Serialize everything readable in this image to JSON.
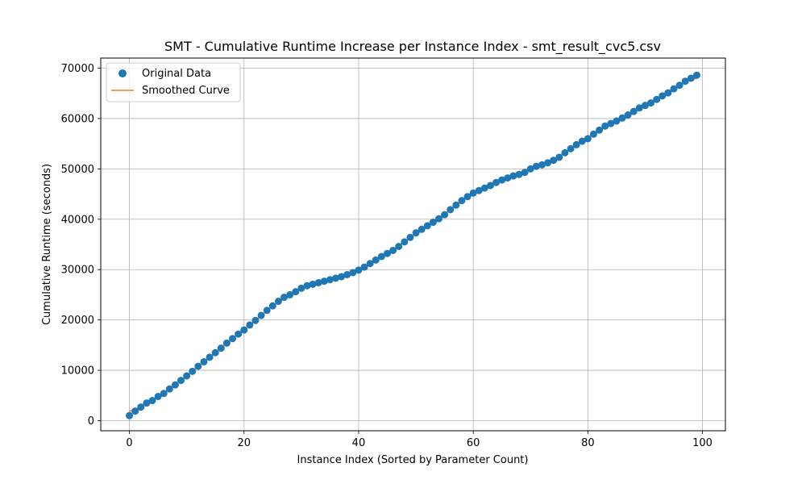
{
  "chart_data": {
    "type": "line",
    "title": "SMT - Cumulative Runtime Increase per Instance Index - smt_result_cvc5.csv",
    "xlabel": "Instance Index (Sorted by Parameter Count)",
    "ylabel": "Cumulative Runtime (seconds)",
    "xlim": [
      -5,
      104
    ],
    "ylim": [
      -2000,
      72000
    ],
    "xticks": [
      0,
      20,
      40,
      60,
      80,
      100
    ],
    "yticks": [
      0,
      10000,
      20000,
      30000,
      40000,
      50000,
      60000,
      70000
    ],
    "xtick_labels": [
      "0",
      "20",
      "40",
      "60",
      "80",
      "100"
    ],
    "ytick_labels": [
      "0",
      "10000",
      "20000",
      "30000",
      "40000",
      "50000",
      "60000",
      "70000"
    ],
    "grid": true,
    "legend": {
      "placement": "top-left"
    },
    "series": [
      {
        "name": "Original Data",
        "kind": "scatter",
        "color": "#1f77b4",
        "x": [
          0,
          1,
          2,
          3,
          4,
          5,
          6,
          7,
          8,
          9,
          10,
          11,
          12,
          13,
          14,
          15,
          16,
          17,
          18,
          19,
          20,
          21,
          22,
          23,
          24,
          25,
          26,
          27,
          28,
          29,
          30,
          31,
          32,
          33,
          34,
          35,
          36,
          37,
          38,
          39,
          40,
          41,
          42,
          43,
          44,
          45,
          46,
          47,
          48,
          49,
          50,
          51,
          52,
          53,
          54,
          55,
          56,
          57,
          58,
          59,
          60,
          61,
          62,
          63,
          64,
          65,
          66,
          67,
          68,
          69,
          70,
          71,
          72,
          73,
          74,
          75,
          76,
          77,
          78,
          79,
          80,
          81,
          82,
          83,
          84,
          85,
          86,
          87,
          88,
          89,
          90,
          91,
          92,
          93,
          94,
          95,
          96,
          97,
          98,
          99
        ],
        "y": [
          1000,
          1900,
          2700,
          3500,
          4000,
          4800,
          5400,
          6300,
          7100,
          8000,
          8900,
          9800,
          10800,
          11700,
          12600,
          13500,
          14400,
          15400,
          16300,
          17200,
          18000,
          19000,
          19900,
          20900,
          21900,
          22800,
          23700,
          24500,
          25000,
          25600,
          26300,
          26800,
          27100,
          27400,
          27700,
          28000,
          28300,
          28600,
          29000,
          29400,
          29900,
          30500,
          31200,
          31900,
          32600,
          33200,
          33800,
          34600,
          35500,
          36400,
          37300,
          38000,
          38700,
          39400,
          40100,
          40900,
          41900,
          42800,
          43700,
          44500,
          45200,
          45700,
          46200,
          46700,
          47300,
          47800,
          48200,
          48600,
          48900,
          49300,
          50000,
          50500,
          50800,
          51200,
          51700,
          52300,
          53200,
          54000,
          54800,
          55500,
          56000,
          56900,
          57700,
          58500,
          59000,
          59500,
          60100,
          60700,
          61400,
          62100,
          62600,
          63100,
          63800,
          64500,
          65100,
          65900,
          66600,
          67400,
          68000,
          68600
        ]
      },
      {
        "name": "Smoothed Curve",
        "kind": "line",
        "color": "#ff7f0e"
      }
    ]
  }
}
